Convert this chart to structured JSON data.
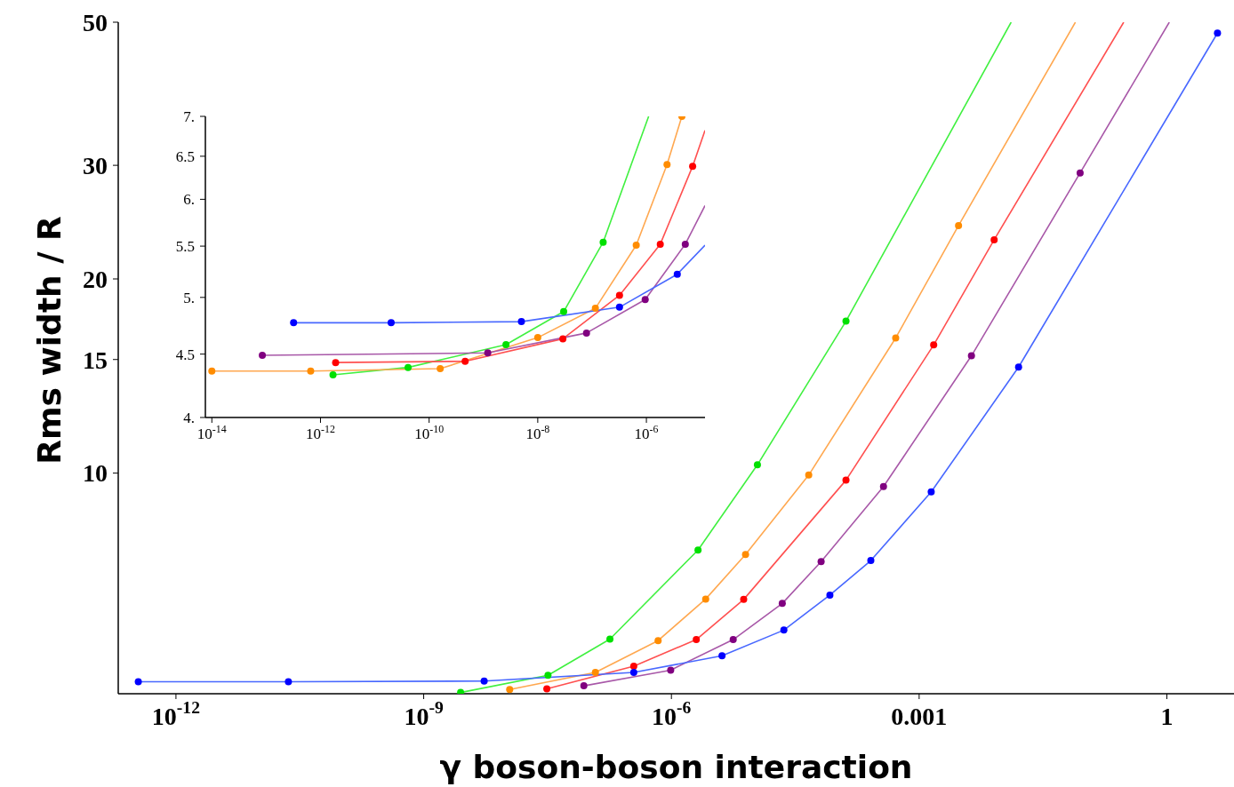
{
  "chart_data": [
    {
      "type": "line",
      "xlabel": "γ boson-boson interaction",
      "ylabel": "Rms width / R",
      "log": "xy",
      "grid": false,
      "xlim": [
        2e-13,
        6.5
      ],
      "ylim": [
        4.55,
        50
      ],
      "xticks": [
        {
          "value": 1e-12,
          "label": "10$^{-12}$"
        },
        {
          "value": 1e-09,
          "label": "10$^{-9}$"
        },
        {
          "value": 1e-06,
          "label": "10$^{-6}$"
        },
        0.001,
        1
      ],
      "yticks": [
        10,
        15,
        20,
        30,
        50
      ],
      "series": [
        {
          "type": "line",
          "color": "#40f040",
          "x": [
            2.8e-09,
            3.2e-08,
            1.8e-07,
            2.1e-06,
            1.1e-05,
            0.00013,
            0.013
          ],
          "values": [
            4.57,
            4.86,
            5.53,
            7.6,
            10.3,
            17.2,
            50
          ]
        },
        {
          "type": "scatter",
          "marker": "circle",
          "color": "#00e000",
          "x": [
            2.8e-09,
            3.2e-08,
            1.8e-07,
            2.1e-06,
            1.1e-05,
            0.00013
          ],
          "values": [
            4.57,
            4.86,
            5.53,
            7.6,
            10.3,
            17.2
          ]
        },
        {
          "type": "line",
          "color": "#ffa850",
          "x": [
            1.1e-08,
            1.2e-07,
            6.9e-07,
            2.6e-06,
            7.9e-06,
            4.6e-05,
            0.00052,
            0.003,
            0.078
          ],
          "values": [
            4.62,
            4.91,
            5.5,
            6.38,
            7.48,
            9.93,
            16.2,
            24.2,
            50
          ]
        },
        {
          "type": "scatter",
          "marker": "circle",
          "color": "#ff8c00",
          "x": [
            1.1e-08,
            1.2e-07,
            6.9e-07,
            2.6e-06,
            7.9e-06,
            4.6e-05,
            0.00052,
            0.003
          ],
          "values": [
            4.62,
            4.91,
            5.5,
            6.38,
            7.48,
            9.93,
            16.2,
            24.2
          ]
        },
        {
          "type": "line",
          "color": "#ff5050",
          "x": [
            3.1e-08,
            3.5e-07,
            2e-06,
            7.5e-06,
            0.00013,
            0.0015,
            0.0081,
            0.3
          ],
          "values": [
            4.63,
            5.02,
            5.52,
            6.37,
            9.75,
            15.8,
            23.0,
            50
          ]
        },
        {
          "type": "scatter",
          "marker": "circle",
          "color": "#ff0000",
          "x": [
            3.1e-08,
            3.5e-07,
            2e-06,
            7.5e-06,
            0.00013,
            0.0015,
            0.0081
          ],
          "values": [
            4.63,
            5.02,
            5.52,
            6.37,
            9.75,
            15.8,
            23.0
          ]
        },
        {
          "type": "line",
          "color": "#a858a8",
          "x": [
            8.7e-08,
            9.8e-07,
            5.6e-06,
            2.2e-05,
            6.5e-05,
            0.00037,
            0.0043,
            0.089,
            1.07
          ],
          "values": [
            4.68,
            4.95,
            5.52,
            6.28,
            7.29,
            9.53,
            15.2,
            29.2,
            50
          ]
        },
        {
          "type": "scatter",
          "marker": "circle",
          "color": "#800080",
          "x": [
            8.7e-08,
            9.8e-07,
            5.6e-06,
            2.2e-05,
            6.5e-05,
            0.00037,
            0.0043,
            0.089
          ],
          "values": [
            4.68,
            4.95,
            5.52,
            6.28,
            7.29,
            9.53,
            15.2,
            29.2
          ]
        },
        {
          "type": "line",
          "color": "#4868ff",
          "x": [
            3.5e-13,
            2.3e-11,
            5.4e-09,
            3.5e-07,
            4.1e-06,
            2.3e-05,
            8.3e-05,
            0.00026,
            0.0014,
            0.016,
            4.1
          ],
          "values": [
            4.75,
            4.75,
            4.76,
            4.91,
            5.21,
            5.71,
            6.47,
            7.32,
            9.35,
            14.6,
            48.1
          ]
        },
        {
          "type": "scatter",
          "marker": "circle",
          "color": "#0000ff",
          "x": [
            3.5e-13,
            2.3e-11,
            5.4e-09,
            3.5e-07,
            4.1e-06,
            2.3e-05,
            8.3e-05,
            0.00026,
            0.0014,
            0.016,
            4.1
          ],
          "values": [
            4.75,
            4.75,
            4.76,
            4.91,
            5.21,
            5.71,
            6.47,
            7.32,
            9.35,
            14.6,
            48.1
          ]
        }
      ]
    },
    {
      "type": "line",
      "log": "xy",
      "grid": false,
      "xlim": [
        7.6e-15,
        1.2e-05
      ],
      "ylim": [
        4,
        7
      ],
      "xticks": [
        {
          "value": 1e-14,
          "label": "10$^{-14}$"
        },
        {
          "value": 1e-12,
          "label": "10$^{-12}$"
        },
        {
          "value": 1e-10,
          "label": "10$^{-10}$"
        },
        {
          "value": 1e-08,
          "label": "10$^{-8}$"
        },
        {
          "value": 1e-06,
          "label": "10$^{-6}$"
        }
      ],
      "yticks": [
        {
          "value": 4,
          "label": "4."
        },
        4.5,
        {
          "value": 5,
          "label": "5."
        },
        5.5,
        {
          "value": 6,
          "label": "6."
        },
        6.5,
        {
          "value": 7,
          "label": "7."
        }
      ],
      "series": [
        {
          "type": "line",
          "color": "#40f040",
          "x": [
            1.7e-12,
            4.1e-11,
            2.6e-09,
            3e-08,
            1.6e-07,
            1.1e-06
          ],
          "values": [
            4.33,
            4.39,
            4.58,
            4.87,
            5.54,
            7.0
          ]
        },
        {
          "type": "scatter",
          "marker": "circle",
          "color": "#00e000",
          "x": [
            1.7e-12,
            4.1e-11,
            2.6e-09,
            3e-08,
            1.6e-07
          ],
          "values": [
            4.33,
            4.39,
            4.58,
            4.87,
            5.54
          ]
        },
        {
          "type": "line",
          "color": "#ffa850",
          "x": [
            1e-14,
            6.6e-13,
            1.6e-10,
            1e-08,
            1.15e-07,
            6.5e-07,
            2.4e-06,
            4.5e-06
          ],
          "values": [
            4.36,
            4.36,
            4.38,
            4.64,
            4.9,
            5.51,
            6.4,
            7.0
          ]
        },
        {
          "type": "scatter",
          "marker": "circle",
          "color": "#ff8c00",
          "x": [
            1e-14,
            6.6e-13,
            1.6e-10,
            1e-08,
            1.15e-07,
            6.5e-07,
            2.4e-06,
            4.5e-06
          ],
          "values": [
            4.36,
            4.36,
            4.38,
            4.64,
            4.9,
            5.51,
            6.4,
            7.0
          ]
        },
        {
          "type": "line",
          "color": "#ff5050",
          "x": [
            1.9e-12,
            4.6e-10,
            2.9e-08,
            3.2e-07,
            1.8e-06,
            7.1e-06,
            1.2e-05
          ],
          "values": [
            4.43,
            4.44,
            4.63,
            5.02,
            5.52,
            6.38,
            6.82
          ]
        },
        {
          "type": "scatter",
          "marker": "circle",
          "color": "#ff0000",
          "x": [
            1.9e-12,
            4.6e-10,
            2.9e-08,
            3.2e-07,
            1.8e-06,
            7.1e-06
          ],
          "values": [
            4.43,
            4.44,
            4.63,
            5.02,
            5.52,
            6.38
          ]
        },
        {
          "type": "line",
          "color": "#a858a8",
          "x": [
            8.5e-14,
            1.2e-09,
            7.9e-08,
            9.5e-07,
            5.2e-06,
            1.2e-05
          ],
          "values": [
            4.49,
            4.51,
            4.68,
            4.98,
            5.52,
            5.93
          ]
        },
        {
          "type": "scatter",
          "marker": "circle",
          "color": "#800080",
          "x": [
            8.5e-14,
            1.2e-09,
            7.9e-08,
            9.5e-07,
            5.2e-06
          ],
          "values": [
            4.49,
            4.51,
            4.68,
            4.98,
            5.52
          ]
        },
        {
          "type": "line",
          "color": "#4868ff",
          "x": [
            3.2e-13,
            2e-11,
            5e-09,
            3.2e-07,
            3.7e-06,
            1.2e-05
          ],
          "values": [
            4.77,
            4.77,
            4.78,
            4.91,
            5.22,
            5.51
          ]
        },
        {
          "type": "scatter",
          "marker": "circle",
          "color": "#0000ff",
          "x": [
            3.2e-13,
            2e-11,
            5e-09,
            3.2e-07,
            3.7e-06
          ],
          "values": [
            4.77,
            4.77,
            4.78,
            4.91,
            5.22
          ]
        }
      ]
    }
  ]
}
